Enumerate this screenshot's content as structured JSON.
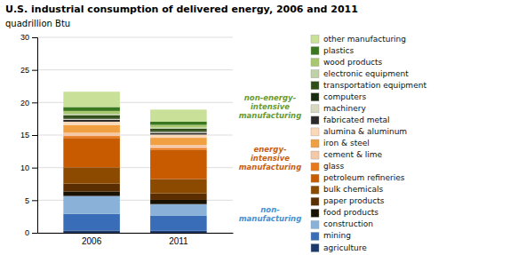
{
  "chart_data": {
    "type": "bar",
    "stacked": true,
    "title": "U.S. industrial consumption of delivered energy, 2006 and 2011",
    "y_label": "quadrillion Btu",
    "categories": [
      "2006",
      "2011"
    ],
    "series": [
      {
        "name": "agriculture",
        "color": "#1b3a6b",
        "values": [
          0.35,
          0.3
        ]
      },
      {
        "name": "mining",
        "color": "#3a6db8",
        "values": [
          2.55,
          2.3
        ]
      },
      {
        "name": "construction",
        "color": "#8ab2d8",
        "values": [
          2.75,
          1.8
        ]
      },
      {
        "name": "food products",
        "color": "#1a1200",
        "values": [
          0.7,
          0.65
        ]
      },
      {
        "name": "paper products",
        "color": "#5a2e00",
        "values": [
          1.2,
          1.0
        ]
      },
      {
        "name": "bulk chemicals",
        "color": "#8c4a00",
        "values": [
          2.5,
          2.2
        ]
      },
      {
        "name": "petroleum refineries",
        "color": "#c85a00",
        "values": [
          4.5,
          4.5
        ]
      },
      {
        "name": "glass",
        "color": "#e8781a",
        "values": [
          0.3,
          0.28
        ]
      },
      {
        "name": "cement & lime",
        "color": "#f5c8a8",
        "values": [
          0.5,
          0.45
        ]
      },
      {
        "name": "iron & steel",
        "color": "#f0a040",
        "values": [
          1.2,
          1.1
        ]
      },
      {
        "name": "alumina & aluminum",
        "color": "#fad8b8",
        "values": [
          0.5,
          0.5
        ]
      },
      {
        "name": "fabricated metal",
        "color": "#2a2a2a",
        "values": [
          0.3,
          0.25
        ]
      },
      {
        "name": "machinery",
        "color": "#d8d8c0",
        "values": [
          0.15,
          0.15
        ]
      },
      {
        "name": "computers",
        "color": "#1a2c10",
        "values": [
          0.1,
          0.1
        ]
      },
      {
        "name": "transportation equipment",
        "color": "#304e18",
        "values": [
          0.45,
          0.4
        ]
      },
      {
        "name": "electronic equipment",
        "color": "#c0d0a8",
        "values": [
          0.2,
          0.18
        ]
      },
      {
        "name": "wood products",
        "color": "#a8c870",
        "values": [
          0.45,
          0.4
        ]
      },
      {
        "name": "plastics",
        "color": "#3a7820",
        "values": [
          0.6,
          0.5
        ]
      },
      {
        "name": "other manufacturing",
        "color": "#c8e098",
        "values": [
          2.35,
          1.85
        ]
      }
    ],
    "ylim": [
      0,
      30
    ],
    "yticks": [
      0,
      5,
      10,
      15,
      20,
      25,
      30
    ],
    "grid": true,
    "legend": "right",
    "annotations": [
      {
        "text": "non-\nmanufacturing",
        "color": "#4a90d0"
      },
      {
        "text": "energy-\nintensive\nmanufacturing",
        "color": "#c86010"
      },
      {
        "text": "non-energy-\nintensive\nmanufacturing",
        "color": "#6a9a30"
      }
    ],
    "group_sizes": [
      3,
      8,
      8
    ]
  }
}
